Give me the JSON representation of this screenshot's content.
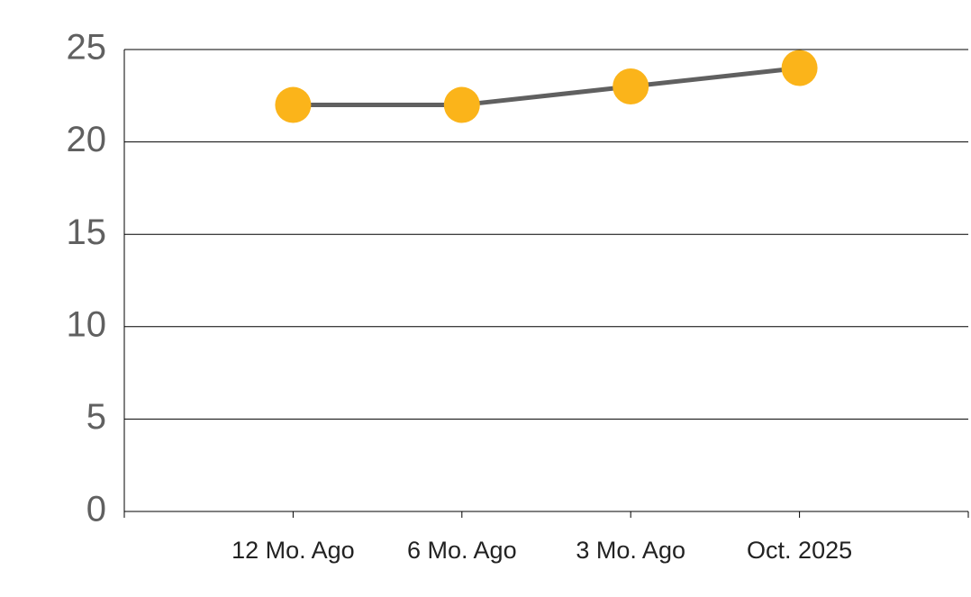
{
  "chart_data": {
    "type": "line",
    "categories": [
      "12 Mo. Ago",
      "6 Mo. Ago",
      "3 Mo. Ago",
      "Oct. 2025"
    ],
    "values": [
      22,
      22,
      23,
      24
    ],
    "color": "#fbb41a",
    "line_color": "#606060",
    "ylim": [
      0,
      25
    ],
    "yticks": [
      0,
      5,
      10,
      15,
      20,
      25
    ],
    "grid": true
  }
}
